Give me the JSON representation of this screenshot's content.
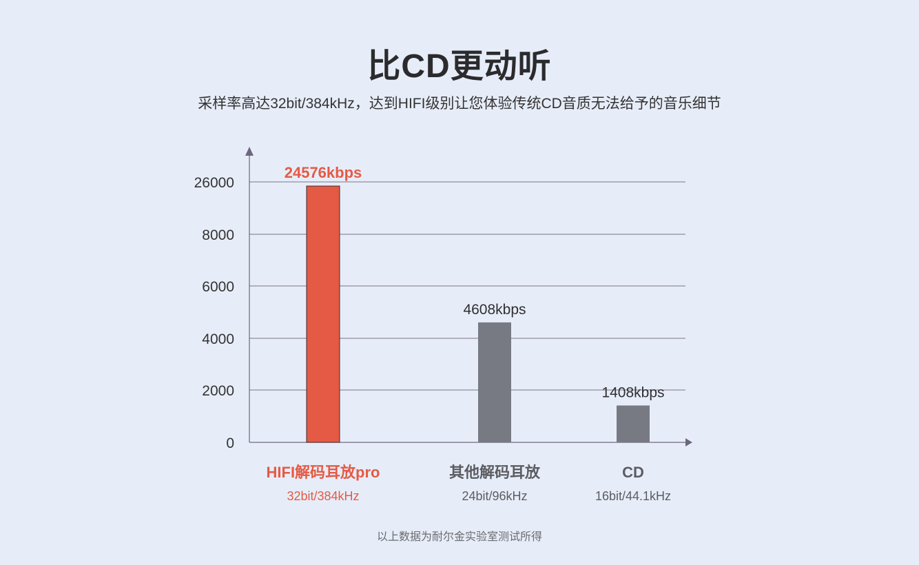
{
  "header": {
    "title": "比CD更动听",
    "subtitle": "采样率高达32bit/384kHz，达到HIFI级别让您体验传统CD音质无法给予的音乐细节"
  },
  "footnote": "以上数据为耐尔金实验室测试所得",
  "colors": {
    "highlight": "#e55a44",
    "bar_gray": "#777a82",
    "grid": "#7b7286",
    "axis": "#6f6580",
    "background": "#e7edf8"
  },
  "chart_data": {
    "type": "bar",
    "y_ticks": [
      "0",
      "2000",
      "4000",
      "6000",
      "8000",
      "26000"
    ],
    "y_axis_note": "top gridline is labelled 26000 (broken scale)",
    "bars": [
      {
        "name": "HIFI解码耳放pro",
        "spec": "32bit/384kHz",
        "value": 24576,
        "value_label": "24576kbps",
        "highlight": true
      },
      {
        "name": "其他解码耳放",
        "spec": "24bit/96kHz",
        "value": 4608,
        "value_label": "4608kbps",
        "highlight": false
      },
      {
        "name": "CD",
        "spec": "16bit/44.1kHz",
        "value": 1408,
        "value_label": "1408kbps",
        "highlight": false
      }
    ],
    "grid": true,
    "legend": "none"
  }
}
